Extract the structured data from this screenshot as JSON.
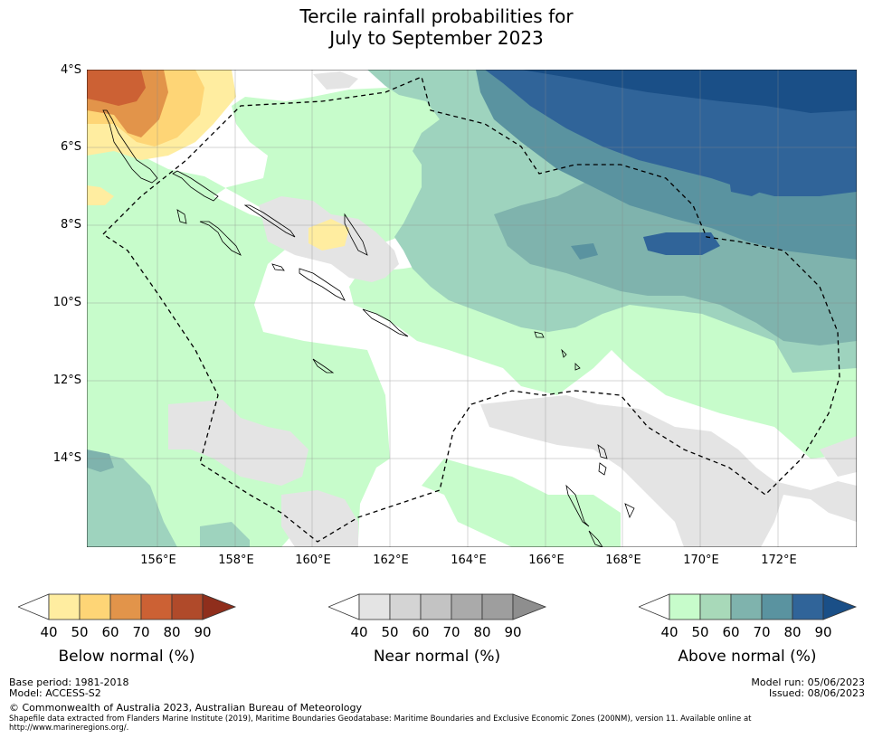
{
  "title": {
    "line1": "Tercile rainfall probabilities for",
    "line2": "July to September 2023"
  },
  "map": {
    "latitude_labels": [
      "4°S",
      "6°S",
      "8°S",
      "10°S",
      "12°S",
      "14°S"
    ],
    "longitude_labels": [
      "156°E",
      "158°E",
      "160°E",
      "162°E",
      "164°E",
      "166°E",
      "168°E",
      "170°E",
      "172°E"
    ],
    "lat_range": [
      -16.4,
      -4.0
    ],
    "lon_range": [
      154.2,
      174.0
    ],
    "colors": {
      "below": [
        "#ffeda0",
        "#fed576",
        "#e2944a",
        "#cc6134",
        "#b04a2a",
        "#8f2e1c"
      ],
      "near": [
        "#e4e4e4",
        "#d4d4d4",
        "#c3c3c3",
        "#aaaaaa",
        "#8e8e8e"
      ],
      "above": [
        "#c7fccb",
        "#9ed3be",
        "#7fb3ad",
        "#5a93a0",
        "#306499",
        "#1a4f87"
      ]
    }
  },
  "colorbars": [
    {
      "caption": "Below normal (%)",
      "ticks": [
        "40",
        "50",
        "60",
        "70",
        "80",
        "90"
      ]
    },
    {
      "caption": "Near normal (%)",
      "ticks": [
        "40",
        "50",
        "60",
        "70",
        "80",
        "90"
      ]
    },
    {
      "caption": "Above normal (%)",
      "ticks": [
        "40",
        "50",
        "60",
        "70",
        "80",
        "90"
      ]
    }
  ],
  "footer": {
    "base_period": "Base period: 1981-2018",
    "model": "Model: ACCESS-S2",
    "model_run": "Model run: 05/06/2023",
    "issued": "Issued: 08/06/2023",
    "copyright": "© Commonwealth of Australia 2023, Australian Bureau of Meteorology",
    "shapefile_note": "Shapefile data extracted from Flanders Marine Institute (2019), Maritime Boundaries Geodatabase: Maritime Boundaries and Exclusive Economic Zones (200NM), version 11. Available online at http://www.marineregions.org/."
  }
}
